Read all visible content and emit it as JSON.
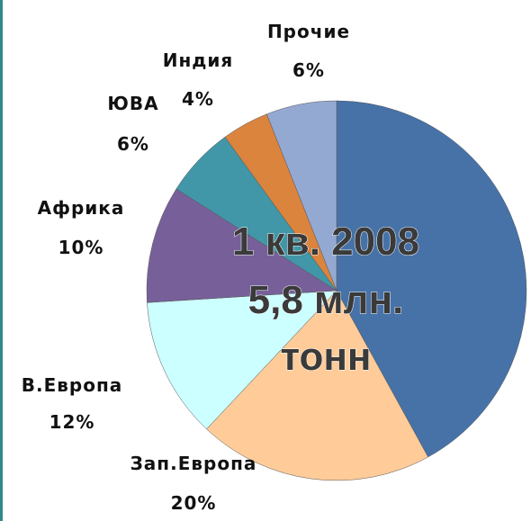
{
  "chart_data": {
    "type": "pie",
    "categories": [
      null,
      "Зап.Европа",
      "В.Европа",
      "Африка",
      "ЮВА",
      "Индия",
      "Прочие"
    ],
    "values": [
      42,
      20,
      12,
      10,
      6,
      4,
      6
    ],
    "value_labels": [
      null,
      "20%",
      "12%",
      "10%",
      "6%",
      "4%",
      "6%"
    ],
    "colors": [
      "#4672A8",
      "#FFCC99",
      "#CCFFFF",
      "#77609A",
      "#4197A8",
      "#DB843D",
      "#94A9D2"
    ],
    "annotation": [
      "1 кв. 2008",
      "5,8 млн.",
      "тонн"
    ]
  }
}
